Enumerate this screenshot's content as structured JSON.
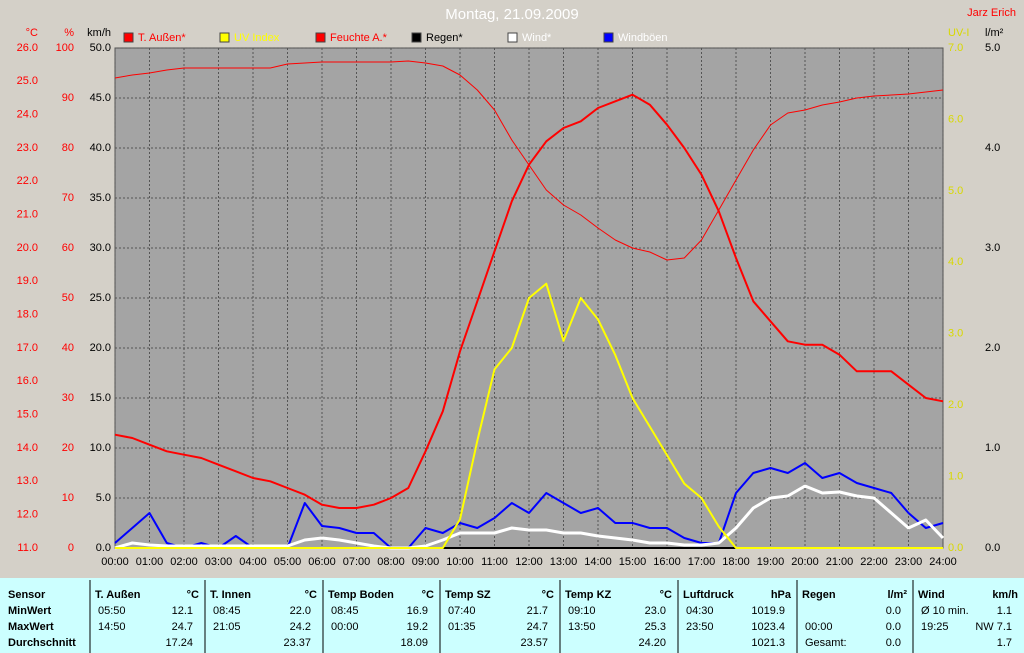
{
  "chart_data": {
    "type": "line",
    "title": "Montag, 21.09.2009",
    "author": "Jarz Erich",
    "xlim": [
      0,
      24
    ],
    "xticks": [
      {
        "value": 0,
        "label": "00:00"
      },
      {
        "value": 1,
        "label": "01:00"
      },
      {
        "value": 2,
        "label": "02:00"
      },
      {
        "value": 3,
        "label": "03:00"
      },
      {
        "value": 4,
        "label": "04:00"
      },
      {
        "value": 5,
        "label": "05:00"
      },
      {
        "value": 6,
        "label": "06:00"
      },
      {
        "value": 7,
        "label": "07:00"
      },
      {
        "value": 8,
        "label": "08:00"
      },
      {
        "value": 9,
        "label": "09:00"
      },
      {
        "value": 10,
        "label": "10:00"
      },
      {
        "value": 11,
        "label": "11:00"
      },
      {
        "value": 12,
        "label": "12:00"
      },
      {
        "value": 13,
        "label": "13:00"
      },
      {
        "value": 14,
        "label": "14:00"
      },
      {
        "value": 15,
        "label": "15:00"
      },
      {
        "value": 16,
        "label": "16:00"
      },
      {
        "value": 17,
        "label": "17:00"
      },
      {
        "value": 18,
        "label": "18:00"
      },
      {
        "value": 19,
        "label": "19:00"
      },
      {
        "value": 20,
        "label": "20:00"
      },
      {
        "value": 21,
        "label": "21:00"
      },
      {
        "value": 22,
        "label": "22:00"
      },
      {
        "value": 23,
        "label": "23:00"
      },
      {
        "value": 24,
        "label": "24:00"
      }
    ],
    "grid": true,
    "grid_axis": 2,
    "axes": [
      {
        "label": "°C",
        "color": "#ff0000",
        "lim": [
          11,
          26
        ],
        "ticks": [
          {
            "value": 11,
            "label": "11.0"
          },
          {
            "value": 12,
            "label": "12.0"
          },
          {
            "value": 13,
            "label": "13.0"
          },
          {
            "value": 14,
            "label": "14.0"
          },
          {
            "value": 15,
            "label": "15.0"
          },
          {
            "value": 16,
            "label": "16.0"
          },
          {
            "value": 17,
            "label": "17.0"
          },
          {
            "value": 18,
            "label": "18.0"
          },
          {
            "value": 19,
            "label": "19.0"
          },
          {
            "value": 20,
            "label": "20.0"
          },
          {
            "value": 21,
            "label": "21.0"
          },
          {
            "value": 22,
            "label": "22.0"
          },
          {
            "value": 23,
            "label": "23.0"
          },
          {
            "value": 24,
            "label": "24.0"
          },
          {
            "value": 25,
            "label": "25.0"
          },
          {
            "value": 26,
            "label": "26.0"
          }
        ]
      },
      {
        "label": "%",
        "color": "#ff0000",
        "lim": [
          0,
          100
        ],
        "ticks": [
          0,
          10,
          20,
          30,
          40,
          50,
          60,
          70,
          80,
          90,
          100
        ]
      },
      {
        "label": "km/h",
        "color": "#000000",
        "lim": [
          0,
          50
        ],
        "ticks": [
          {
            "value": 0,
            "label": "0.0"
          },
          {
            "value": 5,
            "label": "5.0"
          },
          {
            "value": 10,
            "label": "10.0"
          },
          {
            "value": 15,
            "label": "15.0"
          },
          {
            "value": 20,
            "label": "20.0"
          },
          {
            "value": 25,
            "label": "25.0"
          },
          {
            "value": 30,
            "label": "30.0"
          },
          {
            "value": 35,
            "label": "35.0"
          },
          {
            "value": 40,
            "label": "40.0"
          },
          {
            "value": 45,
            "label": "45.0"
          },
          {
            "value": 50,
            "label": "50.0"
          }
        ]
      },
      {
        "label": "UV-I",
        "color": "#d8d800",
        "lim": [
          0,
          7
        ],
        "ticks": [
          {
            "value": 0,
            "label": "0.0"
          },
          {
            "value": 1,
            "label": "1.0"
          },
          {
            "value": 2,
            "label": "2.0"
          },
          {
            "value": 3,
            "label": "3.0"
          },
          {
            "value": 4,
            "label": "4.0"
          },
          {
            "value": 5,
            "label": "5.0"
          },
          {
            "value": 6,
            "label": "6.0"
          },
          {
            "value": 7,
            "label": "7.0"
          }
        ]
      },
      {
        "label": "l/m²",
        "color": "#000000",
        "lim": [
          0,
          5
        ],
        "ticks": [
          {
            "value": 0,
            "label": "0.0"
          },
          {
            "value": 1,
            "label": "1.0"
          },
          {
            "value": 2,
            "label": "2.0"
          },
          {
            "value": 3,
            "label": "3.0"
          },
          {
            "value": 4,
            "label": "4.0"
          },
          {
            "value": 5,
            "label": "5.0"
          }
        ]
      }
    ],
    "x": [
      0,
      0.5,
      1,
      1.5,
      2,
      2.5,
      3,
      3.5,
      4,
      4.5,
      5,
      5.5,
      6,
      6.5,
      7,
      7.5,
      8,
      8.5,
      9,
      9.5,
      10,
      10.5,
      11,
      11.5,
      12,
      12.5,
      13,
      13.5,
      14,
      14.5,
      15,
      15.5,
      16,
      16.5,
      17,
      17.5,
      18,
      18.5,
      19,
      19.5,
      20,
      20.5,
      21,
      21.5,
      22,
      22.5,
      23,
      23.5,
      24
    ],
    "series": [
      {
        "name": "T. Außen*",
        "color": "#ff0000",
        "label_color": "#ff0000",
        "width": 2,
        "axis": 0,
        "values": [
          14.4,
          14.3,
          14.1,
          13.9,
          13.8,
          13.7,
          13.5,
          13.3,
          13.1,
          13.0,
          12.8,
          12.6,
          12.3,
          12.2,
          12.2,
          12.3,
          12.5,
          12.8,
          13.9,
          15.1,
          16.9,
          18.4,
          19.9,
          21.4,
          22.5,
          23.2,
          23.6,
          23.8,
          24.2,
          24.4,
          24.6,
          24.3,
          23.7,
          23.0,
          22.2,
          21.1,
          19.7,
          18.4,
          17.8,
          17.2,
          17.1,
          17.1,
          16.8,
          16.3,
          16.3,
          16.3,
          15.9,
          15.5,
          15.4
        ]
      },
      {
        "name": "UV Index",
        "color": "#ffff00",
        "label_color": "#ffff00",
        "width": 2,
        "axis": 3,
        "values": [
          0,
          0,
          0,
          0,
          0,
          0,
          0,
          0,
          0,
          0,
          0,
          0,
          0,
          0,
          0,
          0,
          0,
          0,
          0,
          0,
          0.4,
          1.5,
          2.5,
          2.8,
          3.5,
          3.7,
          2.9,
          3.5,
          3.2,
          2.7,
          2.1,
          1.7,
          1.3,
          0.9,
          0.7,
          0.3,
          0,
          0,
          0,
          0,
          0,
          0,
          0,
          0,
          0,
          0,
          0,
          0,
          0
        ]
      },
      {
        "name": "Feuchte A.*",
        "color": "#ff0000",
        "label_color": "#ff0000",
        "width": 1,
        "axis": 1,
        "values": [
          94,
          94.6,
          95,
          95.6,
          96,
          96,
          96,
          96,
          96,
          96,
          96.8,
          97,
          97.2,
          97.2,
          97.2,
          97.2,
          97.2,
          97.4,
          97,
          96.4,
          94.6,
          91.6,
          87.6,
          81.6,
          76.6,
          71.6,
          68.6,
          66.6,
          64,
          61.6,
          60,
          59.2,
          57.6,
          58,
          61.6,
          67.6,
          73.6,
          79.6,
          84.6,
          87,
          87.6,
          88.6,
          89.2,
          90,
          90.4,
          90.6,
          90.8,
          91.2,
          91.6
        ]
      },
      {
        "name": "Regen*",
        "color": "#000000",
        "label_color": "#000000",
        "width": 2,
        "axis": 4,
        "values": [
          0,
          0,
          0,
          0,
          0,
          0,
          0,
          0,
          0,
          0,
          0,
          0,
          0,
          0,
          0,
          0,
          0,
          0,
          0,
          0,
          0,
          0,
          0,
          0,
          0,
          0,
          0,
          0,
          0,
          0,
          0,
          0,
          0,
          0,
          0,
          0,
          0,
          0,
          0,
          0,
          0,
          0,
          0,
          0,
          0,
          0,
          0,
          0,
          0
        ]
      },
      {
        "name": "Wind*",
        "color": "#ffffff",
        "label_color": "#ffffff",
        "width": 3,
        "axis": 2,
        "values": [
          0,
          0.5,
          0.3,
          0.2,
          0.2,
          0.2,
          0.2,
          0.2,
          0.2,
          0.2,
          0.2,
          0.8,
          1.0,
          0.8,
          0.5,
          0.2,
          0,
          0,
          0.2,
          0.8,
          1.5,
          1.5,
          1.5,
          2.0,
          1.8,
          1.8,
          1.5,
          1.5,
          1.2,
          1.0,
          0.8,
          0.5,
          0.5,
          0.3,
          0.3,
          0.5,
          2.0,
          4.0,
          5.0,
          5.2,
          6.2,
          5.5,
          5.6,
          5.2,
          5.0,
          3.5,
          2.0,
          2.8,
          1.0
        ]
      },
      {
        "name": "Windböen",
        "color": "#0000ff",
        "label_color": "#ffffff",
        "width": 2,
        "axis": 2,
        "values": [
          0.5,
          2.0,
          3.5,
          0.5,
          0,
          0.5,
          0,
          1.2,
          0,
          0,
          0,
          4.5,
          2.2,
          2.0,
          1.5,
          1.5,
          0,
          0,
          2.0,
          1.5,
          2.5,
          2.0,
          3.0,
          4.5,
          3.5,
          5.5,
          4.5,
          3.5,
          4.0,
          2.5,
          2.5,
          2.0,
          2.0,
          1.0,
          0.5,
          0.5,
          5.5,
          7.5,
          8.0,
          7.5,
          8.5,
          7.0,
          7.5,
          6.5,
          6.0,
          5.5,
          3.5,
          2.0,
          2.5
        ]
      }
    ]
  },
  "table": {
    "row_header": "Sensor",
    "row_labels": [
      "MinWert",
      "MaxWert",
      "Durchschnitt"
    ],
    "columns": [
      {
        "title": "T. Außen",
        "unit": "°C",
        "cells": [
          {
            "left": "05:50",
            "right": "12.1"
          },
          {
            "left": "14:50",
            "right": "24.7"
          },
          {
            "right": "17.24"
          }
        ]
      },
      {
        "title": "T. Innen",
        "unit": "°C",
        "cells": [
          {
            "left": "08:45",
            "right": "22.0"
          },
          {
            "left": "21:05",
            "right": "24.2"
          },
          {
            "right": "23.37"
          }
        ]
      },
      {
        "title": "Temp Boden",
        "unit": "°C",
        "cells": [
          {
            "left": "08:45",
            "right": "16.9"
          },
          {
            "left": "00:00",
            "right": "19.2"
          },
          {
            "right": "18.09"
          }
        ]
      },
      {
        "title": "Temp SZ",
        "unit": "°C",
        "cells": [
          {
            "left": "07:40",
            "right": "21.7"
          },
          {
            "left": "01:35",
            "right": "24.7"
          },
          {
            "right": "23.57"
          }
        ]
      },
      {
        "title": "Temp KZ",
        "unit": "°C",
        "cells": [
          {
            "left": "09:10",
            "right": "23.0"
          },
          {
            "left": "13:50",
            "right": "25.3"
          },
          {
            "right": "24.20"
          }
        ]
      },
      {
        "title": "Luftdruck",
        "unit": "hPa",
        "cells": [
          {
            "left": "04:30",
            "right": "1019.9"
          },
          {
            "left": "23:50",
            "right": "1023.4"
          },
          {
            "right": "1021.3"
          }
        ]
      },
      {
        "title": "Regen",
        "unit": "l/m²",
        "cells": [
          {
            "right": "0.0"
          },
          {
            "left": "00:00",
            "right": "0.0"
          },
          {
            "left": "Gesamt:",
            "right": "0.0"
          }
        ]
      },
      {
        "title": "Wind",
        "unit": "km/h",
        "cells": [
          {
            "left": "Ø 10 min.",
            "right": "1.1"
          },
          {
            "left": "19:25",
            "right": "NW 7.1"
          },
          {
            "right": "1.7"
          }
        ]
      }
    ]
  }
}
